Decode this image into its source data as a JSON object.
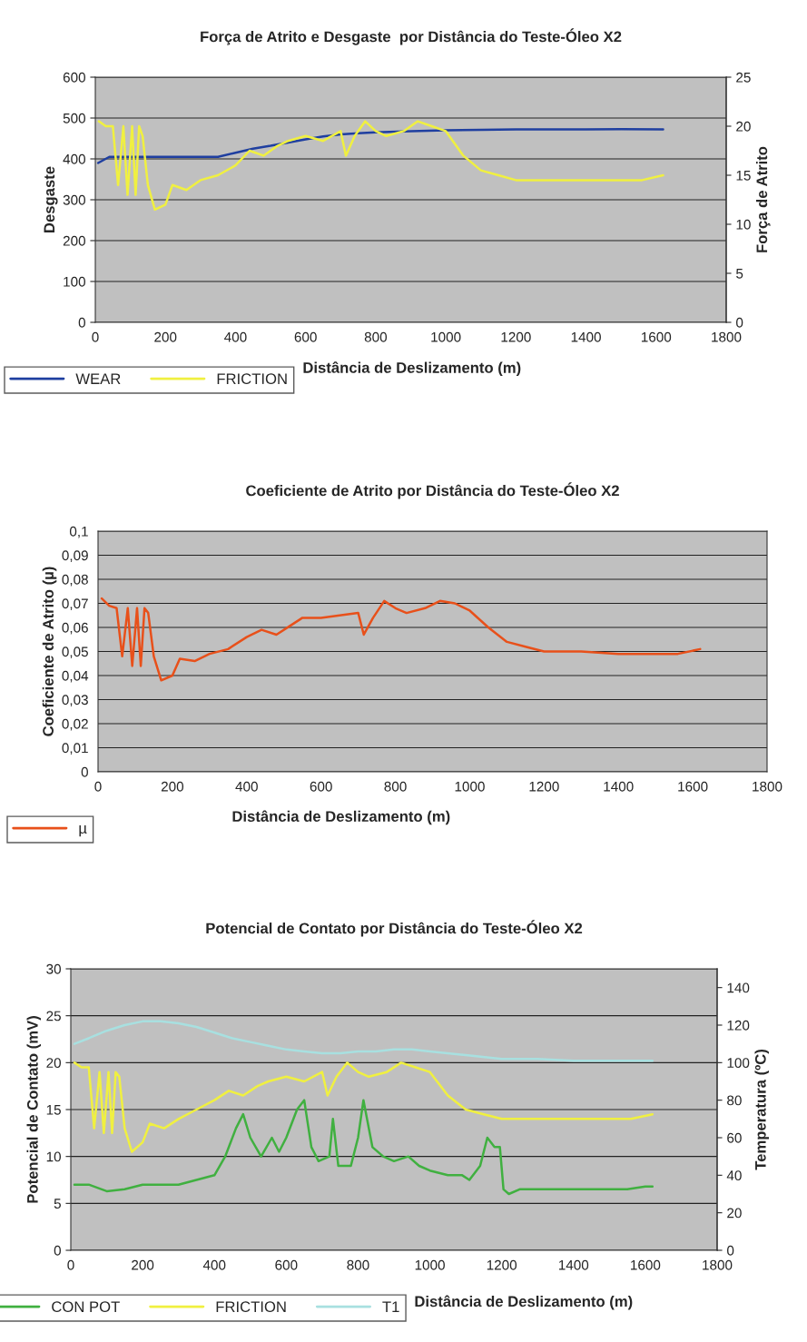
{
  "chart_data": [
    {
      "type": "line",
      "title": "Força de Atrito e Desgaste  por Distância do Teste-Óleo X2",
      "xlabel": "Distância de Deslizamento (m)",
      "ylabel": "Desgaste",
      "y2label": "Força de Atrito",
      "xlim": [
        0,
        1800
      ],
      "xticks": [
        0,
        200,
        400,
        600,
        800,
        1000,
        1200,
        1400,
        1600,
        1800
      ],
      "ylim": [
        0,
        600
      ],
      "yticks": [
        0,
        100,
        200,
        300,
        400,
        500,
        600
      ],
      "y2lim": [
        0,
        25
      ],
      "y2ticks": [
        0,
        5,
        10,
        15,
        20,
        25
      ],
      "grid": "y",
      "legend": "bottom left",
      "series": [
        {
          "name": "WEAR",
          "color": "#1f3fa0",
          "x": [
            8,
            40,
            100,
            200,
            300,
            350,
            400,
            450,
            500,
            550,
            600,
            650,
            700,
            750,
            800,
            900,
            1000,
            1100,
            1200,
            1300,
            1400,
            1500,
            1620
          ],
          "values": [
            390,
            405,
            405,
            405,
            405,
            405,
            415,
            425,
            432,
            440,
            448,
            455,
            460,
            463,
            465,
            468,
            470,
            471,
            472,
            472,
            472,
            473,
            472
          ]
        },
        {
          "name": "FRICTION",
          "color": "#f0f040",
          "axis": "y2",
          "x": [
            10,
            30,
            50,
            65,
            80,
            92,
            105,
            115,
            125,
            135,
            150,
            170,
            200,
            220,
            260,
            300,
            350,
            400,
            440,
            480,
            520,
            550,
            600,
            650,
            700,
            715,
            740,
            770,
            800,
            830,
            880,
            920,
            960,
            1000,
            1050,
            1100,
            1150,
            1200,
            1300,
            1400,
            1500,
            1560,
            1620
          ],
          "values": [
            20.5,
            20,
            20,
            14,
            20,
            13,
            20,
            13,
            20,
            19,
            14,
            11.5,
            12,
            14,
            13.5,
            14.5,
            15,
            16,
            17.5,
            17,
            18,
            18.5,
            19,
            18.5,
            19.5,
            17,
            19,
            20.5,
            19.5,
            19,
            19.5,
            20.5,
            20,
            19.5,
            17,
            15.5,
            15,
            14.5,
            14.5,
            14.5,
            14.5,
            14.5,
            15
          ]
        }
      ]
    },
    {
      "type": "line",
      "title": "Coeficiente de Atrito por Distância do Teste-Óleo X2",
      "xlabel": "Distância de Deslizamento (m)",
      "ylabel": "Coeficiente de Atrito (µ)",
      "xlim": [
        0,
        1800
      ],
      "xticks": [
        0,
        200,
        400,
        600,
        800,
        1000,
        1200,
        1400,
        1600,
        1800
      ],
      "ylim": [
        0,
        0.1
      ],
      "yticks": [
        0,
        {
          "value": 0.01,
          "label": "0,01"
        },
        {
          "value": 0.02,
          "label": "0,02"
        },
        {
          "value": 0.03,
          "label": "0,03"
        },
        {
          "value": 0.04,
          "label": "0,04"
        },
        {
          "value": 0.05,
          "label": "0,05"
        },
        {
          "value": 0.06,
          "label": "0,06"
        },
        {
          "value": 0.07,
          "label": "0,07"
        },
        {
          "value": 0.08,
          "label": "0,08"
        },
        {
          "value": 0.09,
          "label": "0,09"
        },
        {
          "value": 0.1,
          "label": "0,1"
        }
      ],
      "grid": "y",
      "legend": "bottom left",
      "series": [
        {
          "name": "µ",
          "color": "#e8501a",
          "x": [
            10,
            30,
            50,
            65,
            80,
            92,
            105,
            115,
            125,
            135,
            150,
            170,
            200,
            220,
            260,
            300,
            350,
            400,
            440,
            480,
            520,
            550,
            600,
            650,
            700,
            715,
            740,
            770,
            800,
            830,
            880,
            920,
            960,
            1000,
            1050,
            1100,
            1150,
            1200,
            1300,
            1400,
            1500,
            1560,
            1620
          ],
          "values": [
            0.072,
            0.069,
            0.068,
            0.048,
            0.068,
            0.044,
            0.068,
            0.044,
            0.068,
            0.066,
            0.048,
            0.038,
            0.04,
            0.047,
            0.046,
            0.049,
            0.051,
            0.056,
            0.059,
            0.057,
            0.061,
            0.064,
            0.064,
            0.065,
            0.066,
            0.057,
            0.064,
            0.071,
            0.068,
            0.066,
            0.068,
            0.071,
            0.07,
            0.067,
            0.06,
            0.054,
            0.052,
            0.05,
            0.05,
            0.049,
            0.049,
            0.049,
            0.051
          ]
        }
      ]
    },
    {
      "type": "line",
      "title": "Potencial de Contato por Distância do Teste-Óleo X2",
      "xlabel": "Distância de Deslizamento (m)",
      "ylabel": "Potencial de Contato (mV)",
      "y2label": "Temperatura (ºC)",
      "xlim": [
        0,
        1800
      ],
      "xticks": [
        0,
        200,
        400,
        600,
        800,
        1000,
        1200,
        1400,
        1600,
        1800
      ],
      "ylim": [
        0,
        30
      ],
      "yticks": [
        0,
        5,
        10,
        15,
        20,
        25,
        30
      ],
      "y2lim": [
        0,
        150
      ],
      "y2ticks": [
        0,
        20,
        40,
        60,
        80,
        100,
        120,
        140
      ],
      "grid": "y",
      "legend": "bottom left",
      "series": [
        {
          "name": "CON POT",
          "color": "#40b040",
          "x": [
            10,
            50,
            100,
            150,
            200,
            300,
            350,
            400,
            430,
            460,
            480,
            500,
            530,
            560,
            580,
            600,
            630,
            650,
            670,
            690,
            720,
            730,
            745,
            780,
            800,
            815,
            840,
            870,
            900,
            940,
            970,
            1000,
            1050,
            1090,
            1110,
            1140,
            1160,
            1180,
            1195,
            1205,
            1220,
            1250,
            1300,
            1400,
            1500,
            1550,
            1600,
            1620
          ],
          "values": [
            7,
            7,
            6.3,
            6.5,
            7,
            7,
            7.5,
            8,
            10,
            13,
            14.5,
            12,
            10,
            12,
            10.5,
            12,
            15,
            16,
            11,
            9.5,
            10,
            14,
            9,
            9,
            12,
            16,
            11,
            10,
            9.5,
            10,
            9,
            8.5,
            8,
            8,
            7.5,
            9,
            12,
            11,
            11,
            6.5,
            6,
            6.5,
            6.5,
            6.5,
            6.5,
            6.5,
            6.8,
            6.8
          ]
        },
        {
          "name": "FRICTION",
          "color": "#f0f040",
          "x": [
            10,
            30,
            50,
            65,
            80,
            92,
            105,
            115,
            125,
            135,
            150,
            170,
            200,
            220,
            260,
            300,
            350,
            400,
            440,
            480,
            520,
            550,
            600,
            650,
            700,
            715,
            740,
            770,
            800,
            830,
            880,
            920,
            960,
            1000,
            1050,
            1100,
            1150,
            1200,
            1300,
            1400,
            1500,
            1560,
            1620
          ],
          "values": [
            20,
            19.5,
            19.5,
            13,
            19,
            12.5,
            19,
            12.5,
            19,
            18.5,
            13,
            10.5,
            11.5,
            13.5,
            13,
            14,
            15,
            16,
            17,
            16.5,
            17.5,
            18,
            18.5,
            18,
            19,
            16.5,
            18.5,
            20,
            19,
            18.5,
            19,
            20,
            19.5,
            19,
            16.5,
            15,
            14.5,
            14,
            14,
            14,
            14,
            14,
            14.5
          ]
        },
        {
          "name": "T1",
          "color": "#a8e0e0",
          "axis": "y2",
          "x": [
            10,
            50,
            100,
            150,
            200,
            250,
            300,
            350,
            400,
            450,
            500,
            550,
            600,
            650,
            700,
            750,
            800,
            850,
            900,
            950,
            1000,
            1100,
            1200,
            1300,
            1400,
            1500,
            1620
          ],
          "values": [
            110,
            113,
            117,
            120,
            122,
            122,
            121,
            119,
            116,
            113,
            111,
            109,
            107,
            106,
            105,
            105,
            106,
            106,
            107,
            107,
            106,
            104,
            102,
            102,
            101,
            101,
            101
          ]
        }
      ]
    }
  ]
}
